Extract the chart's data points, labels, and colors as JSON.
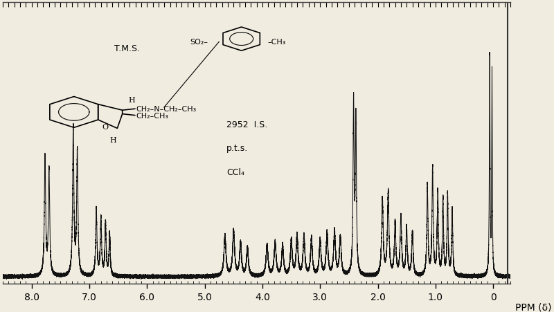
{
  "background_color": "#f0ece0",
  "spectrum_color": "#111111",
  "xlim": [
    8.5,
    -0.3
  ],
  "ylim": [
    -0.03,
    1.15
  ],
  "xticks": [
    8.0,
    7.0,
    6.0,
    5.0,
    4.0,
    3.0,
    2.0,
    1.0,
    0.0
  ],
  "xlabel": "PPM (δ)",
  "annotation_2952": "2952  I.S.",
  "annotation_pts": "p.t.s.",
  "annotation_ccl4": "CCl₄",
  "annotation_tms": "T.M.S.",
  "figsize": [
    8.0,
    4.52
  ],
  "dpi": 100
}
